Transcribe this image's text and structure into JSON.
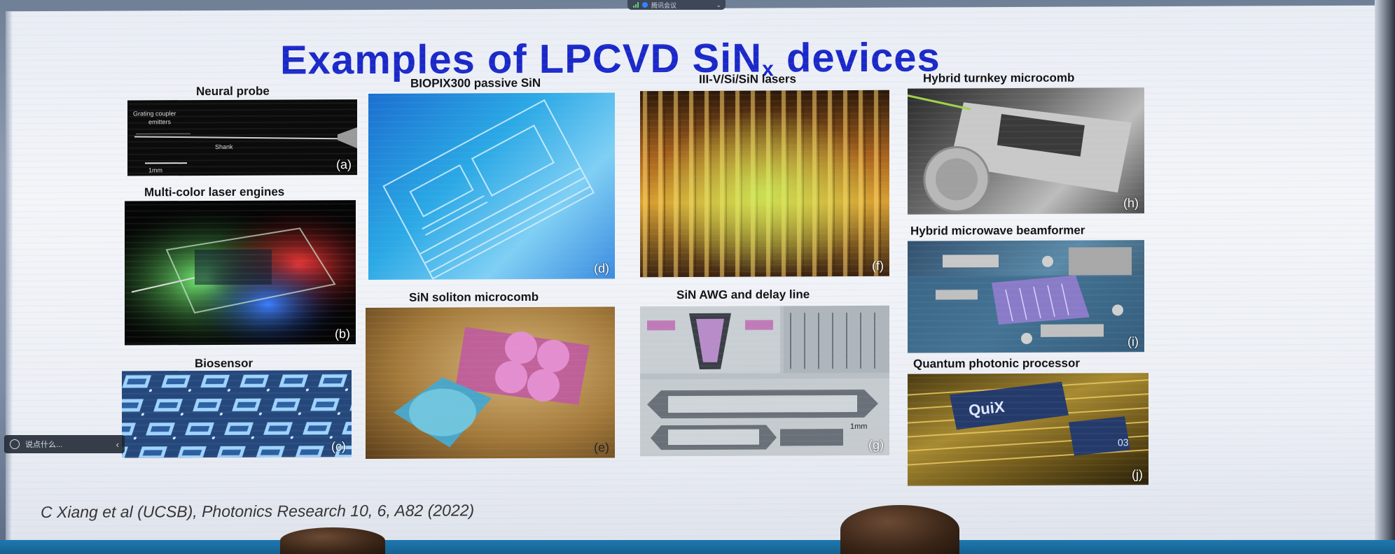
{
  "meeting_bar": {
    "label": "腾讯会议"
  },
  "slide": {
    "title_main": "Examples of LPCVD SiN",
    "title_sub": "x",
    "citation": "C Xiang et al (UCSB), Photonics Research  10, 6, A82 (2022)"
  },
  "captions": {
    "neural_probe": "Neural probe",
    "laser_engines": "Multi-color laser engines",
    "biosensor": "Biosensor",
    "biopix": "BIOPIX300 passive SiN",
    "soliton": "SiN soliton microcomb",
    "lasers": "III-V/Si/SiN lasers",
    "awg": "SiN AWG and delay line",
    "turnkey": "Hybrid turnkey microcomb",
    "beamformer": "Hybrid microwave beamformer",
    "quantum": "Quantum photonic processor"
  },
  "panel_labels": {
    "a": "(a)",
    "b": "(b)",
    "c": "(c)",
    "d": "(d)",
    "e": "(e)",
    "f": "(f)",
    "g": "(g)",
    "h": "(h)",
    "i": "(i)",
    "j": "(j)"
  },
  "probe_labels": {
    "coupler": "Grating coupler",
    "emitters": "emitters",
    "shank": "Shank",
    "scale": "1mm"
  },
  "awg_scale": "1mm",
  "chip_text": {
    "quix": "QuiX",
    "number": "03"
  },
  "comment_input": {
    "placeholder": "说点什么..."
  },
  "colors": {
    "title": "#1a28c9",
    "slide_bg": "#eceff5",
    "bottom_strip": "#1e78b0"
  }
}
